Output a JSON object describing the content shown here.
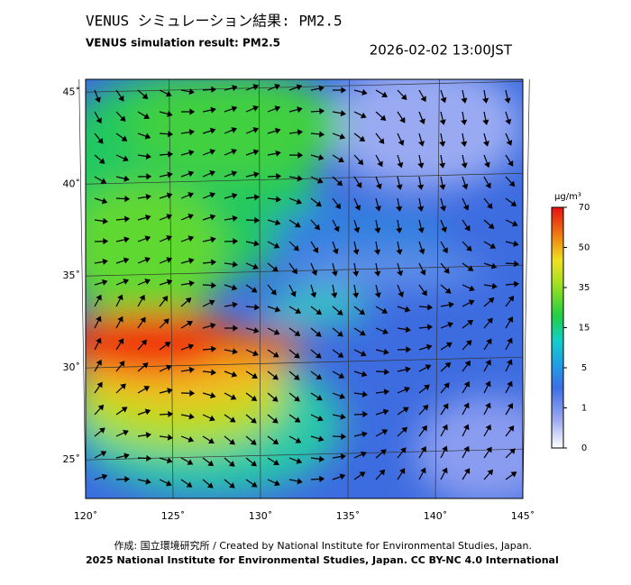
{
  "chart_data": {
    "type": "map",
    "title": "VENUS シミュレーション結果: PM2.5",
    "subtitle": "VENUS simulation result: PM2.5",
    "timestamp": "2026-02-02 13:00JST",
    "xlim": [
      120,
      145
    ],
    "xticks": [
      {
        "value": 120,
        "label": "120˚"
      },
      {
        "value": 125,
        "label": "125˚"
      },
      {
        "value": 130,
        "label": "130˚"
      },
      {
        "value": 135,
        "label": "135˚"
      },
      {
        "value": 140,
        "label": "140˚"
      },
      {
        "value": 145,
        "label": "145˚"
      }
    ],
    "ylim": [
      22.9,
      45.7
    ],
    "yticks": [
      {
        "value": 25,
        "label": "25˚"
      },
      {
        "value": 30,
        "label": "30˚"
      },
      {
        "value": 35,
        "label": "35˚"
      },
      {
        "value": 40,
        "label": "40˚"
      },
      {
        "value": 45,
        "label": "45˚"
      }
    ],
    "colorbar": {
      "unit": "μg/m³",
      "ticks": [
        0,
        1,
        5,
        15,
        35,
        50,
        70
      ]
    },
    "credit": "作成: 国立環境研究所 / Created by National Institute for Environmental Studies, Japan.",
    "license": "2025 National Institute for Environmental Studies, Japan. CC BY-NC 4.0 International"
  }
}
